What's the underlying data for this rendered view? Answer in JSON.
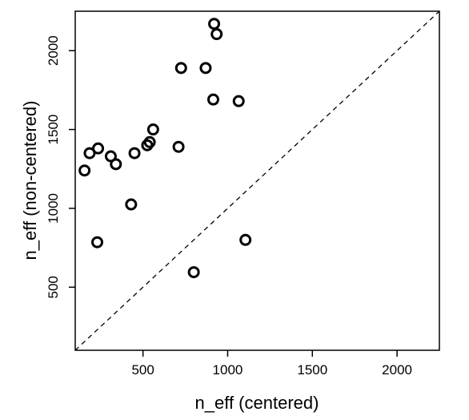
{
  "chart_data": {
    "type": "scatter",
    "xlabel": "n_eff (centered)",
    "ylabel": "n_eff (non-centered)",
    "xlim": [
      100,
      2250
    ],
    "ylim": [
      100,
      2250
    ],
    "x_ticks": [
      500,
      1000,
      1500,
      2000
    ],
    "y_ticks": [
      500,
      1000,
      1500,
      2000
    ],
    "x_tick_labels": [
      "500",
      "1000",
      "1500",
      "2000"
    ],
    "y_tick_labels": [
      "500",
      "1000",
      "1500",
      "2000"
    ],
    "reference_line": "dashed y = x",
    "grid": false,
    "legend": "none",
    "marker": "open-circle",
    "color": "#000000",
    "points": [
      {
        "x": 920,
        "y": 2170
      },
      {
        "x": 935,
        "y": 2105
      },
      {
        "x": 725,
        "y": 1890
      },
      {
        "x": 870,
        "y": 1890
      },
      {
        "x": 915,
        "y": 1690
      },
      {
        "x": 1065,
        "y": 1680
      },
      {
        "x": 560,
        "y": 1500
      },
      {
        "x": 540,
        "y": 1420
      },
      {
        "x": 525,
        "y": 1400
      },
      {
        "x": 710,
        "y": 1390
      },
      {
        "x": 235,
        "y": 1380
      },
      {
        "x": 450,
        "y": 1350
      },
      {
        "x": 185,
        "y": 1350
      },
      {
        "x": 310,
        "y": 1330
      },
      {
        "x": 340,
        "y": 1280
      },
      {
        "x": 155,
        "y": 1240
      },
      {
        "x": 430,
        "y": 1025
      },
      {
        "x": 230,
        "y": 785
      },
      {
        "x": 1105,
        "y": 800
      },
      {
        "x": 800,
        "y": 595
      }
    ]
  }
}
